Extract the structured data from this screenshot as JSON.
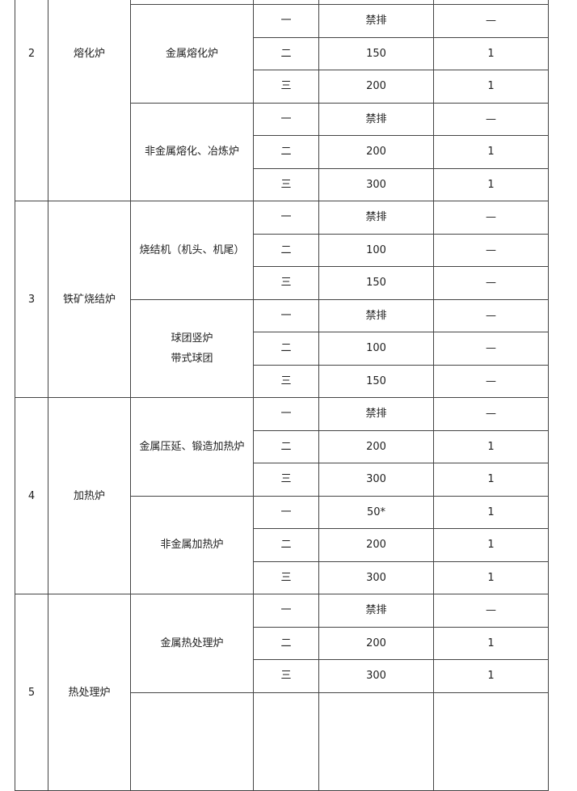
{
  "table": {
    "groups": [
      {
        "no": "2",
        "name": "熔化炉",
        "subgroups": [
          {
            "name": "金属熔化炉",
            "rows": [
              {
                "level": "一",
                "limit": "禁排",
                "value": "—"
              },
              {
                "level": "二",
                "limit": "150",
                "value": "1"
              },
              {
                "level": "三",
                "limit": "200",
                "value": "1"
              }
            ]
          },
          {
            "name": "非金属熔化、冶炼炉",
            "rows": [
              {
                "level": "一",
                "limit": "禁排",
                "value": "—"
              },
              {
                "level": "二",
                "limit": "200",
                "value": "1"
              },
              {
                "level": "三",
                "limit": "300",
                "value": "1"
              }
            ]
          }
        ]
      },
      {
        "no": "3",
        "name": "铁矿烧结炉",
        "subgroups": [
          {
            "name": "烧结机（机头、机尾）",
            "rows": [
              {
                "level": "一",
                "limit": "禁排",
                "value": "—"
              },
              {
                "level": "二",
                "limit": "100",
                "value": "—"
              },
              {
                "level": "三",
                "limit": "150",
                "value": "—"
              }
            ]
          },
          {
            "name": "球团竖炉\n带式球团",
            "rows": [
              {
                "level": "一",
                "limit": "禁排",
                "value": "—"
              },
              {
                "level": "二",
                "limit": "100",
                "value": "—"
              },
              {
                "level": "三",
                "limit": "150",
                "value": "—"
              }
            ]
          }
        ]
      },
      {
        "no": "4",
        "name": "加热炉",
        "subgroups": [
          {
            "name": "金属压延、锻造加热炉",
            "rows": [
              {
                "level": "一",
                "limit": "禁排",
                "value": "—"
              },
              {
                "level": "二",
                "limit": "200",
                "value": "1"
              },
              {
                "level": "三",
                "limit": "300",
                "value": "1"
              }
            ]
          },
          {
            "name": "非金属加热炉",
            "rows": [
              {
                "level": "一",
                "limit": "50*",
                "value": "1"
              },
              {
                "level": "二",
                "limit": "200",
                "value": "1"
              },
              {
                "level": "三",
                "limit": "300",
                "value": "1"
              }
            ]
          }
        ]
      },
      {
        "no": "5",
        "name": "热处理炉",
        "subgroups": [
          {
            "name": "金属热处理炉",
            "rows": [
              {
                "level": "一",
                "limit": "禁排",
                "value": "—"
              },
              {
                "level": "二",
                "limit": "200",
                "value": "1"
              },
              {
                "level": "三",
                "limit": "300",
                "value": "1"
              }
            ]
          }
        ]
      }
    ]
  }
}
